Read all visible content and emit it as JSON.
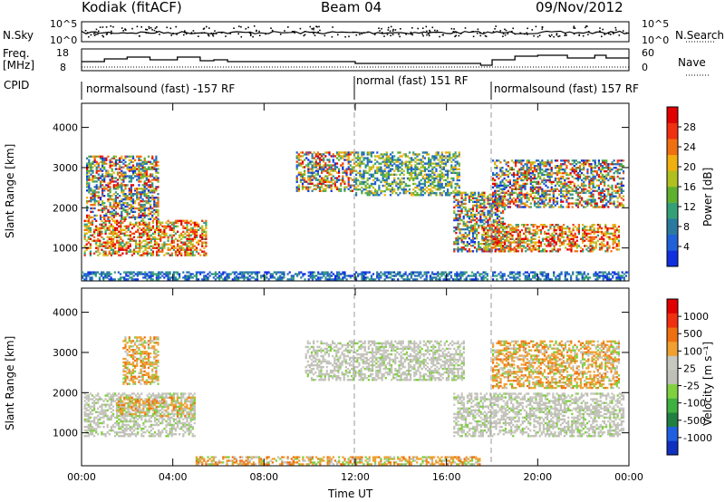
{
  "header": {
    "station": "Kodiak (fitACF)",
    "beam": "Beam 04",
    "date": "09/Nov/2012"
  },
  "panels": {
    "nsky": {
      "label": "N.Sky",
      "ticks": [
        "10^5",
        "10^0"
      ],
      "right_label": "N.Search",
      "right_ticks": [
        "10^5",
        "10^0"
      ]
    },
    "freq": {
      "label_line1": "Freq.",
      "label_line2": "[MHz]",
      "ticks": [
        "18",
        "8"
      ],
      "right_label": "Nave",
      "right_ticks": [
        "60",
        "0"
      ]
    },
    "cpid": {
      "label": "CPID",
      "segments": [
        {
          "text": "normalsound (fast) -157 RF",
          "start_hour": 0
        },
        {
          "text": "normal (fast) 151 RF",
          "start_hour": 12
        },
        {
          "text": "normalsound (fast) 157 RF",
          "start_hour": 18
        }
      ]
    }
  },
  "chart_data": [
    {
      "type": "heatmap",
      "title": "",
      "xlabel": "Time UT",
      "ylabel": "Slant Range [km]",
      "xlim": [
        0,
        24
      ],
      "ylim": [
        180,
        4600
      ],
      "yticks": [
        1000,
        2000,
        3000,
        4000
      ],
      "colorbar": {
        "label": "Power [dB]",
        "ticks": [
          "28",
          "24",
          "20",
          "16",
          "12",
          "8",
          "4"
        ],
        "colors": [
          "#1030e0",
          "#2060d8",
          "#2a7aa0",
          "#35a078",
          "#60b030",
          "#b0c020",
          "#f0b010",
          "#f07010",
          "#f03010",
          "#e00000"
        ]
      },
      "echo_regions": [
        {
          "t0": 0.1,
          "t1": 5.5,
          "r0": 800,
          "r1": 1700,
          "level": "strong"
        },
        {
          "t0": 0.2,
          "t1": 3.4,
          "r0": 1700,
          "r1": 3300,
          "level": "mixed"
        },
        {
          "t0": 9.4,
          "t1": 12.0,
          "r0": 2400,
          "r1": 3400,
          "level": "mixed"
        },
        {
          "t0": 12.0,
          "t1": 16.6,
          "r0": 2300,
          "r1": 3400,
          "level": "medium"
        },
        {
          "t0": 16.3,
          "t1": 18.6,
          "r0": 900,
          "r1": 2400,
          "level": "mixed"
        },
        {
          "t0": 17.6,
          "t1": 23.6,
          "r0": 900,
          "r1": 1600,
          "level": "strong"
        },
        {
          "t0": 18.0,
          "t1": 23.8,
          "r0": 2000,
          "r1": 3200,
          "level": "mixed"
        },
        {
          "t0": 0.0,
          "t1": 24.0,
          "r0": 200,
          "r1": 420,
          "level": "weak"
        }
      ]
    },
    {
      "type": "heatmap",
      "title": "",
      "xlabel": "Time UT",
      "ylabel": "Slant Range [km]",
      "xlim": [
        0,
        24
      ],
      "ylim": [
        180,
        4600
      ],
      "yticks": [
        1000,
        2000,
        3000,
        4000
      ],
      "colorbar": {
        "label": "Velocity [m s⁻¹]",
        "ticks": [
          "1000",
          "500",
          "100",
          "25",
          "-25",
          "-100",
          "-500",
          "-1000"
        ],
        "colors": [
          "#1030c0",
          "#2060e0",
          "#208040",
          "#40b040",
          "#80d040",
          "#c0c0b8",
          "#c8c8c0",
          "#f0a030",
          "#f07010",
          "#f03010",
          "#e00000"
        ]
      },
      "echo_regions": [
        {
          "t0": 0.1,
          "t1": 5.0,
          "r0": 900,
          "r1": 2000,
          "level": "gray"
        },
        {
          "t0": 1.5,
          "t1": 5.0,
          "r0": 1400,
          "r1": 1900,
          "level": "orange"
        },
        {
          "t0": 1.8,
          "t1": 3.4,
          "r0": 2200,
          "r1": 3400,
          "level": "orange"
        },
        {
          "t0": 9.8,
          "t1": 16.8,
          "r0": 2300,
          "r1": 3300,
          "level": "gray"
        },
        {
          "t0": 16.3,
          "t1": 23.8,
          "r0": 900,
          "r1": 2000,
          "level": "gray"
        },
        {
          "t0": 18.0,
          "t1": 23.6,
          "r0": 2100,
          "r1": 3300,
          "level": "orange"
        },
        {
          "t0": 5.0,
          "t1": 17.5,
          "r0": 200,
          "r1": 420,
          "level": "orange"
        }
      ]
    }
  ],
  "x_axis": {
    "label": "Time UT",
    "ticks": [
      "00:00",
      "04:00",
      "08:00",
      "12:00",
      "16:00",
      "20:00",
      "00:00"
    ],
    "tick_hours": [
      0,
      4,
      8,
      12,
      16,
      20,
      24
    ]
  }
}
